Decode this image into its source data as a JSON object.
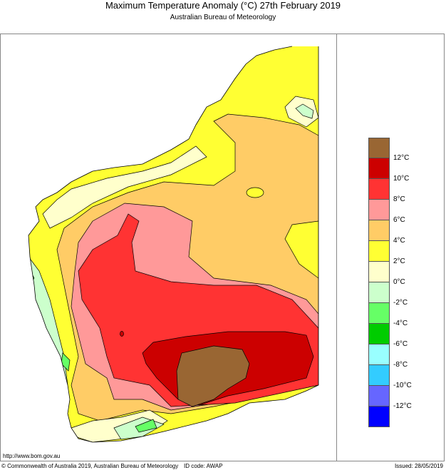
{
  "header": {
    "title": "Maximum Temperature Anomaly (°C)  27th February 2019",
    "subtitle": "Australian Bureau of Meteorology"
  },
  "legend": {
    "labels": [
      "12°C",
      "10°C",
      "8°C",
      "6°C",
      "4°C",
      "2°C",
      "0°C",
      "-2°C",
      "-4°C",
      "-6°C",
      "-8°C",
      "-10°C",
      "-12°C"
    ],
    "colors": [
      "#996633",
      "#cc0000",
      "#ff3333",
      "#ff9999",
      "#ffcc66",
      "#ffff33",
      "#ffffcc",
      "#ccffcc",
      "#66ff66",
      "#00cc00",
      "#99ffff",
      "#33ccff",
      "#6666ff",
      "#0000ff"
    ]
  },
  "footer": {
    "url": "http://www.bom.gov.au",
    "copyright": "© Commonwealth of Australia 2019, Australian Bureau of Meteorology",
    "id_code": "ID code: AWAP",
    "issued": "Issued: 28/05/2019"
  }
}
